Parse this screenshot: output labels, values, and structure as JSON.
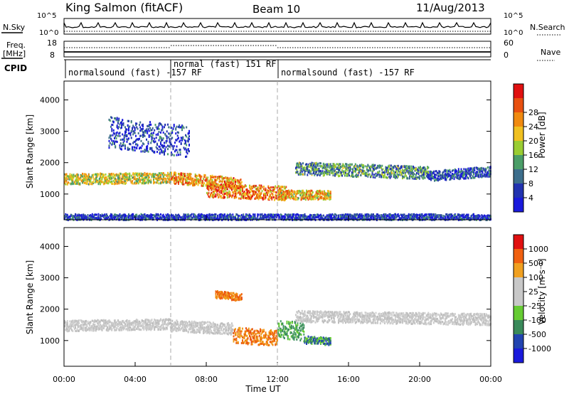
{
  "header": {
    "station": "King Salmon (fitACF)",
    "beam": "Beam 10",
    "date": "11/Aug/2013"
  },
  "top_panels": {
    "nsky_label": "N.Sky",
    "nsky_ticks": [
      "10^5",
      "10^0"
    ],
    "nsearch_label": "N.Search",
    "nsearch_ticks": [
      "10^5",
      "10^0"
    ],
    "freq_label_1": "Freq.",
    "freq_label_2": "[MHz]",
    "freq_ticks": [
      "18",
      "8"
    ],
    "nave_label": "Nave",
    "nave_ticks": [
      "60",
      "0"
    ],
    "cpid_label": "CPID",
    "cpid_segments": [
      {
        "label": "normalsound (fast) -157 RF",
        "start_hour": 0.0,
        "end_hour": 6.0
      },
      {
        "label": "normal (fast) 151 RF",
        "start_hour": 6.0,
        "end_hour": 12.0
      },
      {
        "label": "normalsound (fast) -157 RF",
        "start_hour": 12.0,
        "end_hour": 24.0
      }
    ]
  },
  "chart_data": [
    {
      "type": "heatmap",
      "title": "",
      "xlabel": "Time UT",
      "ylabel": "Slant Range [km]",
      "xlim": [
        0,
        24
      ],
      "ylim": [
        180,
        4600
      ],
      "x_ticks": [
        "00:00",
        "04:00",
        "08:00",
        "12:00",
        "16:00",
        "20:00",
        "00:00"
      ],
      "y_ticks": [
        "1000",
        "2000",
        "3000",
        "4000"
      ],
      "y_tick_values": [
        1000,
        2000,
        3000,
        4000
      ],
      "colorbar": {
        "label": "Power [dB]",
        "ticks": [
          "4",
          "8",
          "12",
          "16",
          "20",
          "24",
          "28"
        ],
        "colors": [
          "#1a1adc",
          "#2233b0",
          "#3d6e8c",
          "#4b9e68",
          "#9acd32",
          "#f0c020",
          "#f08a10",
          "#e85010",
          "#e01010"
        ]
      },
      "bands": [
        {
          "name": "",
          "start": 0.0,
          "end": 6.0,
          "range_start": 1500,
          "range_end": 1550,
          "width": 170,
          "level": 0.55
        },
        {
          "name": "",
          "start": 6.0,
          "end": 10.0,
          "range_start": 1550,
          "range_end": 1350,
          "width": 180,
          "level": 0.7
        },
        {
          "name": "",
          "start": 8.0,
          "end": 12.5,
          "range_start": 1150,
          "range_end": 1050,
          "width": 220,
          "level": 0.75
        },
        {
          "name": "",
          "start": 12.0,
          "end": 15.0,
          "range_start": 1000,
          "range_end": 1000,
          "width": 150,
          "level": 0.65
        },
        {
          "name": "",
          "start": 13.0,
          "end": 20.5,
          "range_start": 1850,
          "range_end": 1700,
          "width": 200,
          "level": 0.35
        },
        {
          "name": "",
          "start": 20.5,
          "end": 24.0,
          "range_start": 1600,
          "range_end": 1750,
          "width": 160,
          "level": 0.2
        },
        {
          "name": "",
          "start": 2.5,
          "end": 7.0,
          "range_start": 3000,
          "range_end": 2700,
          "width": 500,
          "level": 0.15
        },
        {
          "name": "",
          "start": 0.0,
          "end": 24.0,
          "range_start": 270,
          "range_end": 270,
          "width": 120,
          "level": 0.15
        }
      ]
    },
    {
      "type": "heatmap",
      "title": "",
      "xlabel": "Time UT",
      "ylabel": "Slant Range [km]",
      "xlim": [
        0,
        24
      ],
      "ylim": [
        180,
        4600
      ],
      "x_ticks": [
        "00:00",
        "04:00",
        "08:00",
        "12:00",
        "16:00",
        "20:00",
        "00:00"
      ],
      "y_ticks": [
        "1000",
        "2000",
        "3000",
        "4000"
      ],
      "y_tick_values": [
        1000,
        2000,
        3000,
        4000
      ],
      "colorbar": {
        "label": "Velocity [m s⁻¹]",
        "ticks": [
          "1000",
          "500",
          "100",
          "25",
          "-25",
          "-100",
          "-500",
          "-1000"
        ],
        "colors": [
          "#1a1adc",
          "#2244b0",
          "#3a8a5a",
          "#66cc33",
          "#c8c8c8",
          "#c8c8c8",
          "#f0a020",
          "#f06010",
          "#e01010"
        ]
      },
      "bands": [
        {
          "name": "",
          "start": 0.0,
          "end": 6.0,
          "range_start": 1500,
          "range_end": 1550,
          "width": 170,
          "level": "ground"
        },
        {
          "name": "",
          "start": 6.0,
          "end": 9.5,
          "range_start": 1500,
          "range_end": 1400,
          "width": 180,
          "level": "ground"
        },
        {
          "name": "",
          "start": 9.5,
          "end": 12.0,
          "range_start": 1200,
          "range_end": 1100,
          "width": 250,
          "level": "away"
        },
        {
          "name": "",
          "start": 12.0,
          "end": 13.5,
          "range_start": 1400,
          "range_end": 1300,
          "width": 300,
          "level": "toward"
        },
        {
          "name": "",
          "start": 13.5,
          "end": 15.0,
          "range_start": 1050,
          "range_end": 1000,
          "width": 120,
          "level": "toward_fast"
        },
        {
          "name": "",
          "start": 13.0,
          "end": 24.0,
          "range_start": 1800,
          "range_end": 1700,
          "width": 180,
          "level": "ground"
        },
        {
          "name": "",
          "start": 8.5,
          "end": 10.0,
          "range_start": 2500,
          "range_end": 2400,
          "width": 120,
          "level": "away"
        }
      ]
    }
  ]
}
